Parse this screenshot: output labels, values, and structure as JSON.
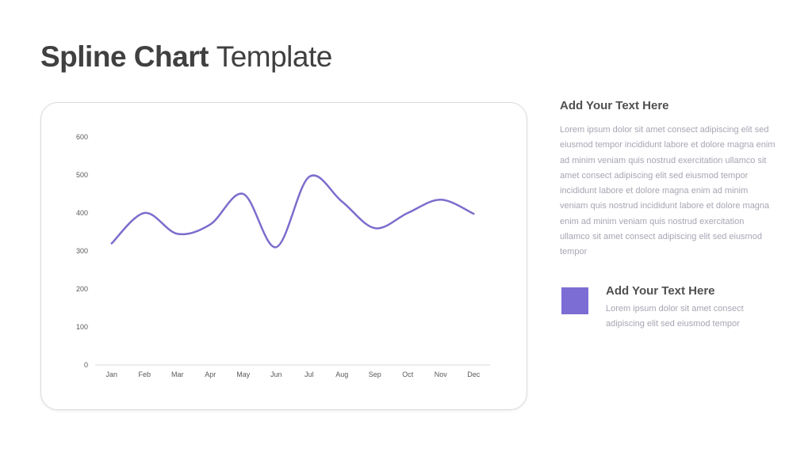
{
  "title": {
    "bold": "Spline Chart",
    "light": "Template"
  },
  "chart_data": {
    "type": "line",
    "smooth": true,
    "categories": [
      "Jan",
      "Feb",
      "Mar",
      "Apr",
      "May",
      "Jun",
      "Jul",
      "Aug",
      "Sep",
      "Oct",
      "Nov",
      "Dec"
    ],
    "series": [
      {
        "values": [
          320,
          400,
          345,
          370,
          450,
          310,
          495,
          430,
          360,
          400,
          435,
          398
        ]
      }
    ],
    "yticks": [
      0,
      100,
      200,
      300,
      400,
      500,
      600
    ],
    "ylim": [
      0,
      600
    ],
    "grid": false,
    "title": "",
    "xlabel": "",
    "ylabel": "",
    "line_color": "#7b6dcc"
  },
  "side": {
    "heading": "Add Your Text Here",
    "body": "Lorem ipsum dolor sit amet consect adipiscing elit sed eiusmod tempor incididunt  labore et dolore magna  enim ad minim veniam quis nostrud exercitation ullamco sit amet consect adipiscing elit sed eiusmod tempor incididunt  labore et dolore magna   enim ad minim veniam quis nostrud incididunt  labore et dolore magna  enim ad minim veniam quis nostrud  exercitation ullamco sit amet consect adipiscing elit sed eiusmod tempor"
  },
  "legend": {
    "color": "#7b6dd4",
    "heading": "Add Your Text Here",
    "body": "Lorem ipsum dolor sit amet consect adipiscing elit sed eiusmod tempor"
  }
}
